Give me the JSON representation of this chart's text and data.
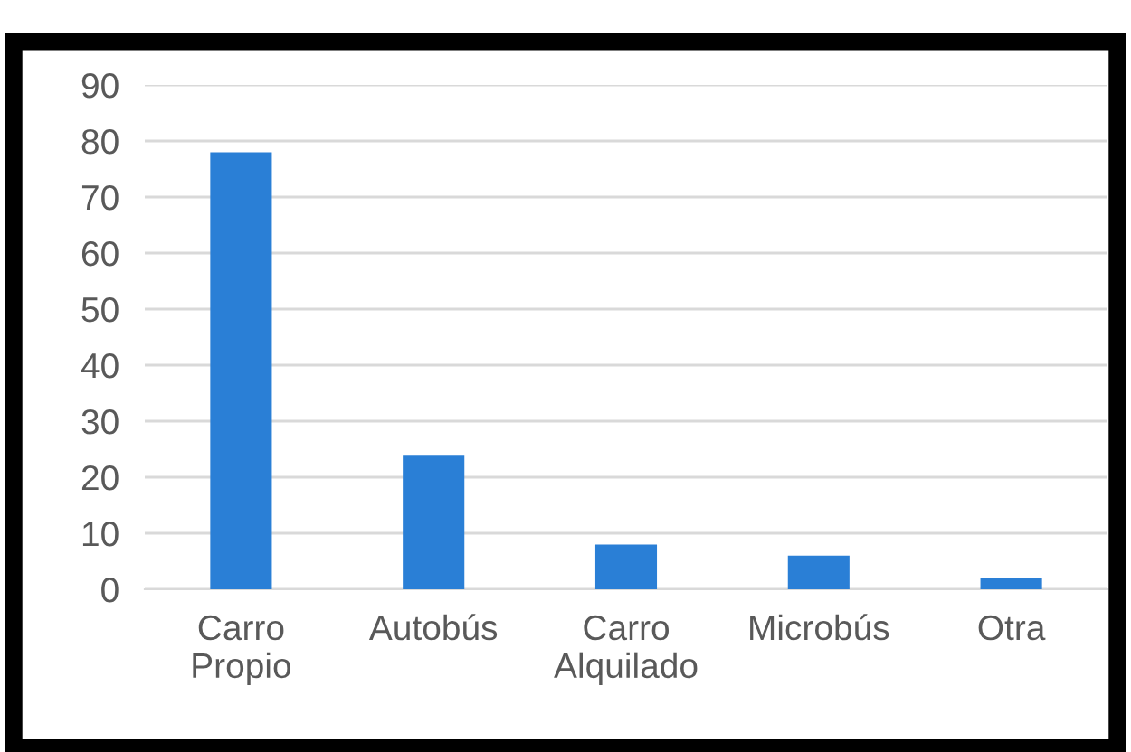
{
  "chart_data": {
    "type": "bar",
    "categories": [
      "Carro\nPropio",
      "Autobús",
      "Carro\nAlquilado",
      "Microbús",
      "Otra"
    ],
    "values": [
      78,
      24,
      8,
      6,
      2
    ],
    "color": "#2a7fd6",
    "ylim": [
      0,
      90
    ],
    "yticks": [
      0,
      10,
      20,
      30,
      40,
      50,
      60,
      70,
      80,
      90
    ],
    "grid": "y",
    "legend": false
  }
}
